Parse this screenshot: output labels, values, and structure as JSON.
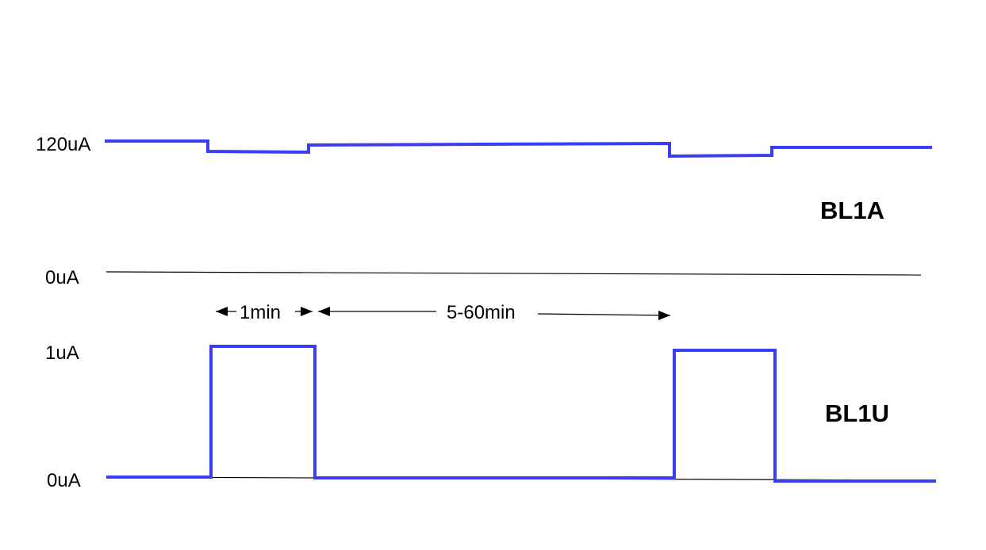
{
  "signals": {
    "top": {
      "name": "BL1A",
      "high_label": "120uA",
      "zero_label": "0uA"
    },
    "bottom": {
      "name": "BL1U",
      "high_label": "1uA",
      "zero_label": "0uA"
    }
  },
  "intervals": {
    "pulse": "1min",
    "gap": "5-60min"
  },
  "colors": {
    "waveform": "#3c3cf2",
    "baseline": "#000000",
    "text": "#000000"
  }
}
